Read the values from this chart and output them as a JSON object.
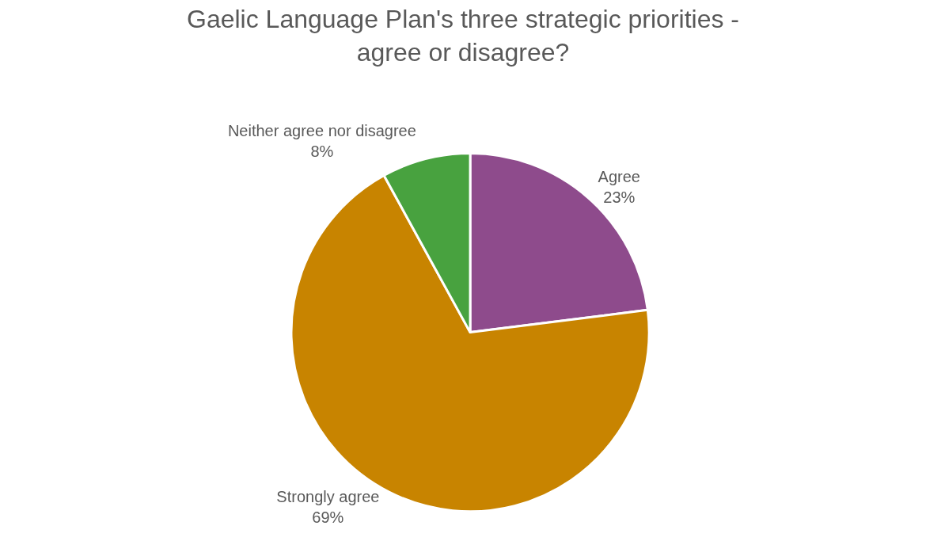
{
  "chart_data": {
    "type": "pie",
    "title": "Gaelic Language Plan's three strategic priorities -\nagree or disagree?",
    "categories": [
      "Agree",
      "Strongly agree",
      "Neither agree nor disagree"
    ],
    "values": [
      23,
      69,
      8
    ],
    "value_labels": [
      "23%",
      "69%",
      "8%"
    ],
    "colors": [
      "#8e4b8c",
      "#c88400",
      "#48a23f"
    ]
  }
}
